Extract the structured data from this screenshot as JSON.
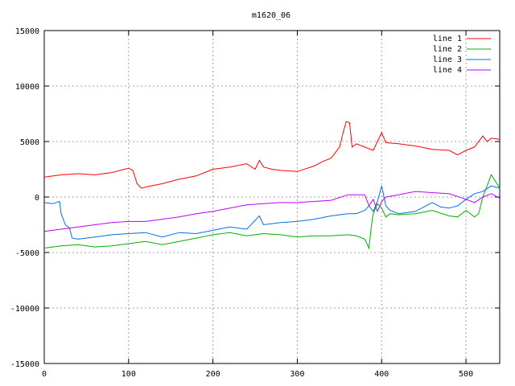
{
  "chart_data": {
    "type": "line",
    "title": "m1620_06",
    "xlabel": "",
    "ylabel": "",
    "xlim": [
      0,
      540
    ],
    "ylim": [
      -15000,
      15000
    ],
    "x_ticks": [
      0,
      100,
      200,
      300,
      400,
      500
    ],
    "y_ticks": [
      -15000,
      -10000,
      -5000,
      0,
      5000,
      10000,
      15000
    ],
    "grid": true,
    "legend_position": "top-right",
    "series": [
      {
        "name": "line 1",
        "color": "#ff0000",
        "x": [
          0,
          20,
          40,
          60,
          80,
          100,
          105,
          110,
          115,
          120,
          140,
          160,
          180,
          200,
          220,
          240,
          250,
          255,
          260,
          270,
          280,
          300,
          320,
          330,
          340,
          350,
          355,
          358,
          362,
          365,
          370,
          380,
          390,
          395,
          400,
          405,
          420,
          440,
          460,
          480,
          490,
          500,
          510,
          520,
          525,
          530,
          540
        ],
        "values": [
          1800,
          2000,
          2100,
          2000,
          2200,
          2600,
          2400,
          1200,
          800,
          900,
          1200,
          1600,
          1900,
          2500,
          2700,
          3000,
          2500,
          3300,
          2700,
          2500,
          2400,
          2300,
          2800,
          3200,
          3500,
          4500,
          6000,
          6800,
          6700,
          4500,
          4800,
          4500,
          4200,
          5000,
          5800,
          4900,
          4800,
          4600,
          4300,
          4200,
          3800,
          4200,
          4500,
          5500,
          5000,
          5300,
          5200
        ]
      },
      {
        "name": "line 2",
        "color": "#00b000",
        "x": [
          0,
          20,
          40,
          60,
          80,
          100,
          120,
          140,
          160,
          180,
          200,
          220,
          240,
          260,
          280,
          300,
          320,
          340,
          360,
          370,
          380,
          385,
          388,
          390,
          395,
          400,
          405,
          410,
          420,
          440,
          460,
          480,
          490,
          500,
          510,
          515,
          520,
          530,
          540
        ],
        "values": [
          -4600,
          -4400,
          -4300,
          -4500,
          -4400,
          -4200,
          -4000,
          -4300,
          -4000,
          -3700,
          -3400,
          -3200,
          -3500,
          -3300,
          -3400,
          -3600,
          -3500,
          -3500,
          -3400,
          -3500,
          -3800,
          -4600,
          -2500,
          -1500,
          -600,
          -1000,
          -1800,
          -1500,
          -1600,
          -1500,
          -1200,
          -1700,
          -1800,
          -1200,
          -1800,
          -1500,
          0,
          2000,
          800
        ]
      },
      {
        "name": "line 3",
        "color": "#0070e0",
        "x": [
          0,
          10,
          18,
          20,
          25,
          30,
          33,
          40,
          60,
          80,
          100,
          120,
          140,
          160,
          180,
          200,
          220,
          240,
          255,
          260,
          280,
          300,
          320,
          340,
          360,
          370,
          380,
          385,
          390,
          395,
          400,
          405,
          410,
          420,
          440,
          460,
          470,
          480,
          490,
          500,
          510,
          520,
          530,
          540
        ],
        "values": [
          -500,
          -600,
          -400,
          -1500,
          -2500,
          -2800,
          -3700,
          -3800,
          -3600,
          -3400,
          -3300,
          -3200,
          -3600,
          -3200,
          -3300,
          -3000,
          -2700,
          -2900,
          -1700,
          -2500,
          -2300,
          -2200,
          -2000,
          -1700,
          -1500,
          -1500,
          -1200,
          -800,
          -1300,
          -400,
          1000,
          -800,
          -1200,
          -1500,
          -1300,
          -500,
          -900,
          -1000,
          -800,
          -200,
          300,
          500,
          1000,
          800
        ]
      },
      {
        "name": "line 4",
        "color": "#c000ff",
        "x": [
          0,
          20,
          40,
          60,
          80,
          100,
          120,
          140,
          160,
          180,
          200,
          220,
          240,
          260,
          280,
          300,
          320,
          340,
          360,
          380,
          385,
          390,
          395,
          400,
          405,
          420,
          440,
          460,
          480,
          500,
          510,
          520,
          530,
          540
        ],
        "values": [
          -3100,
          -2900,
          -2700,
          -2500,
          -2300,
          -2200,
          -2200,
          -2000,
          -1800,
          -1500,
          -1300,
          -1000,
          -700,
          -600,
          -500,
          -500,
          -400,
          -300,
          200,
          200,
          -800,
          -200,
          -1300,
          -400,
          0,
          200,
          500,
          400,
          300,
          -200,
          -500,
          0,
          300,
          -100
        ]
      }
    ]
  }
}
